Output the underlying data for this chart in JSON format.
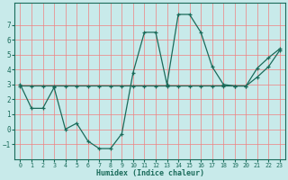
{
  "xlabel": "Humidex (Indice chaleur)",
  "background_color": "#c8eaea",
  "grid_color": "#f08080",
  "line_color": "#1a6b5a",
  "x_data": [
    0,
    1,
    2,
    3,
    4,
    5,
    6,
    7,
    8,
    9,
    10,
    11,
    12,
    13,
    14,
    15,
    16,
    17,
    18,
    19,
    20,
    21,
    22,
    23
  ],
  "y_main": [
    3.0,
    1.4,
    1.4,
    2.8,
    0.0,
    0.4,
    -0.8,
    -1.3,
    -1.3,
    -0.3,
    3.8,
    6.5,
    6.5,
    3.0,
    7.7,
    7.7,
    6.5,
    4.2,
    3.0,
    2.9,
    2.9,
    4.1,
    4.8,
    5.4
  ],
  "y_trend": [
    2.9,
    2.9,
    2.9,
    2.9,
    2.9,
    2.9,
    2.9,
    2.9,
    2.9,
    2.9,
    2.9,
    2.9,
    2.9,
    2.9,
    2.9,
    2.9,
    2.9,
    2.9,
    2.9,
    2.9,
    2.9,
    3.5,
    4.2,
    5.3
  ],
  "ylim": [
    -2,
    8.5
  ],
  "xlim": [
    -0.5,
    23.5
  ],
  "yticks": [
    -1,
    0,
    1,
    2,
    3,
    4,
    5,
    6,
    7
  ],
  "xticks": [
    0,
    1,
    2,
    3,
    4,
    5,
    6,
    7,
    8,
    9,
    10,
    11,
    12,
    13,
    14,
    15,
    16,
    17,
    18,
    19,
    20,
    21,
    22,
    23
  ]
}
